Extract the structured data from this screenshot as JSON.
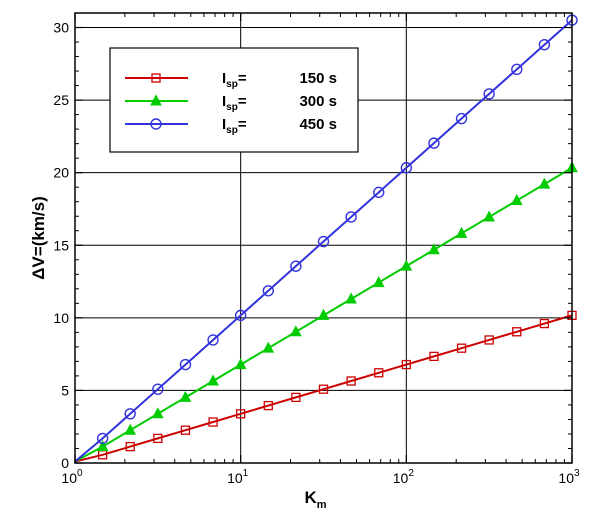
{
  "chart_data": {
    "type": "line",
    "xscale": "log",
    "xlim": [
      1,
      1000
    ],
    "ylim": [
      0,
      31
    ],
    "xlabel": {
      "main": "K",
      "sub": "m"
    },
    "ylabel": "ΔV=(km/s)",
    "xticks": [
      {
        "value": 1,
        "base": "10",
        "exp": "0"
      },
      {
        "value": 10,
        "base": "10",
        "exp": "1"
      },
      {
        "value": 100,
        "base": "10",
        "exp": "2"
      },
      {
        "value": 1000,
        "base": "10",
        "exp": "3"
      }
    ],
    "yticks": [
      "0",
      "5",
      "10",
      "15",
      "20",
      "25",
      "30"
    ],
    "grid": true,
    "legend_position": "top-left",
    "series": [
      {
        "name": "150 s",
        "legend": {
          "prefix": "I",
          "sub": "sp",
          "eq": "=",
          "value": "150 s"
        },
        "color": "#cc0000",
        "marker": "square",
        "x": [
          1.468,
          2.154,
          3.162,
          4.642,
          6.813,
          10.0,
          14.68,
          21.54,
          31.62,
          46.42,
          68.13,
          100.0,
          146.8,
          215.4,
          316.2,
          464.2,
          681.3,
          1000.0
        ],
        "y": [
          0.565,
          1.13,
          1.695,
          2.26,
          2.825,
          3.39,
          3.955,
          4.52,
          5.085,
          5.65,
          6.215,
          6.78,
          7.345,
          7.91,
          8.475,
          9.04,
          9.605,
          10.17
        ]
      },
      {
        "name": "300 s",
        "legend": {
          "prefix": "I",
          "sub": "sp",
          "eq": "=",
          "value": "300 s"
        },
        "color": "#00cc00",
        "marker": "triangle",
        "x": [
          1.468,
          2.154,
          3.162,
          4.642,
          6.813,
          10.0,
          14.68,
          21.54,
          31.62,
          46.42,
          68.13,
          100.0,
          146.8,
          215.4,
          316.2,
          464.2,
          681.3,
          1000.0
        ],
        "y": [
          1.13,
          2.26,
          3.39,
          4.52,
          5.65,
          6.78,
          7.91,
          9.04,
          10.17,
          11.3,
          12.43,
          13.56,
          14.69,
          15.82,
          16.95,
          18.08,
          19.21,
          20.34
        ]
      },
      {
        "name": "450 s",
        "legend": {
          "prefix": "I",
          "sub": "sp",
          "eq": "=",
          "value": "450 s"
        },
        "color": "#3333dd",
        "marker": "circle",
        "x": [
          1.468,
          2.154,
          3.162,
          4.642,
          6.813,
          10.0,
          14.68,
          21.54,
          31.62,
          46.42,
          68.13,
          100.0,
          146.8,
          215.4,
          316.2,
          464.2,
          681.3,
          1000.0
        ],
        "y": [
          1.695,
          3.39,
          5.085,
          6.78,
          8.475,
          10.17,
          11.865,
          13.56,
          15.255,
          16.95,
          18.645,
          20.34,
          22.035,
          23.73,
          25.425,
          27.12,
          28.815,
          30.51
        ]
      }
    ]
  }
}
